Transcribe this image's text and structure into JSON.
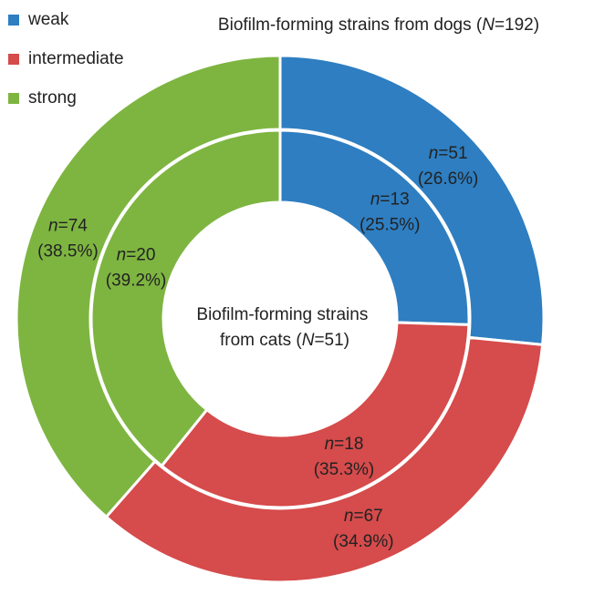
{
  "chart_data": {
    "type": "doughnut",
    "categories": [
      "weak",
      "intermediate",
      "strong"
    ],
    "colors": [
      "#2e7ec1",
      "#d64b4b",
      "#7eb541"
    ],
    "legend": "top-left",
    "series": [
      {
        "name": "Biofilm-forming strains from dogs (N=192)",
        "ring": "outer",
        "values": [
          51,
          67,
          74
        ],
        "value_labels": [
          "n=51",
          "n=67",
          "n=74"
        ],
        "percents": [
          26.6,
          34.9,
          38.5
        ],
        "percent_labels": [
          "(26.6%)",
          "(34.9%)",
          "(38.5%)"
        ]
      },
      {
        "name": "Biofilm-forming strains from cats (N=51)",
        "ring": "inner",
        "values": [
          13,
          18,
          20
        ],
        "value_labels": [
          "n=13",
          "n=18",
          "n=20"
        ],
        "percents": [
          25.5,
          35.3,
          39.2
        ],
        "percent_labels": [
          "(25.5%)",
          "(35.3%)",
          "(39.2%)"
        ]
      }
    ]
  }
}
